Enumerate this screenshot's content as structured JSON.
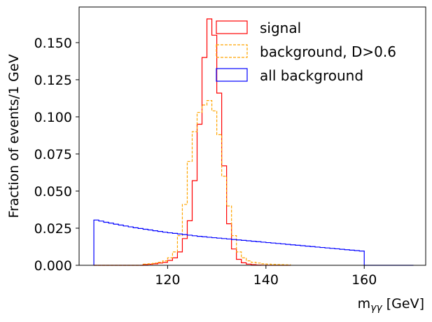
{
  "chart_data": {
    "type": "step",
    "x_label_base": "m",
    "x_label_sub": "γγ",
    "x_label_unit": " [GeV]",
    "ylabel": "Fraction of events/1 GeV",
    "xlim": [
      102,
      172.5
    ],
    "ylim": [
      0,
      0.174
    ],
    "x_ticks": [
      120,
      140,
      160
    ],
    "y_ticks": [
      0.0,
      0.025,
      0.05,
      0.075,
      0.1,
      0.125,
      0.15
    ],
    "x_tick_labels": [
      "120",
      "140",
      "160"
    ],
    "y_tick_labels": [
      "0.000",
      "0.025",
      "0.050",
      "0.075",
      "0.100",
      "0.125",
      "0.150"
    ],
    "bin_width": 1,
    "legend": {
      "position": "top-center"
    },
    "series": [
      {
        "name": "signal",
        "color": "#ff0000",
        "linestyle": "solid",
        "x_start": 105,
        "values": [
          0.0,
          0.0,
          0.0,
          0.0,
          0.0,
          0.0,
          0.0,
          0.0,
          0.0,
          0.0,
          0.0005,
          0.0007,
          0.001,
          0.0015,
          0.002,
          0.0033,
          0.005,
          0.009,
          0.018,
          0.03,
          0.057,
          0.095,
          0.14,
          0.166,
          0.155,
          0.116,
          0.067,
          0.028,
          0.011,
          0.004,
          0.0017,
          0.0008,
          0.0004,
          0.0002,
          0.0001,
          0.0,
          0.0,
          0.0,
          0.0,
          0.0
        ]
      },
      {
        "name": "background, D>0.6",
        "color": "#ffa500",
        "linestyle": "dashed",
        "x_start": 105,
        "values": [
          0.0,
          0.0,
          0.0,
          0.0,
          0.0,
          0.0,
          0.0,
          0.0,
          0.0,
          0.0,
          0.0008,
          0.001,
          0.0015,
          0.002,
          0.003,
          0.005,
          0.009,
          0.02,
          0.041,
          0.07,
          0.09,
          0.103,
          0.108,
          0.111,
          0.104,
          0.088,
          0.06,
          0.04,
          0.02,
          0.009,
          0.005,
          0.003,
          0.002,
          0.0015,
          0.001,
          0.0008,
          0.0006,
          0.0005,
          0.0004,
          0.0003
        ]
      },
      {
        "name": "all background",
        "color": "#0000ff",
        "linestyle": "solid",
        "x_start": 105,
        "values": [
          0.0305,
          0.0298,
          0.029,
          0.0284,
          0.0277,
          0.0271,
          0.0265,
          0.0259,
          0.0253,
          0.0248,
          0.0243,
          0.0238,
          0.0233,
          0.0228,
          0.0223,
          0.0219,
          0.0215,
          0.0211,
          0.0207,
          0.0203,
          0.0199,
          0.0195,
          0.0192,
          0.0189,
          0.0186,
          0.0183,
          0.018,
          0.0177,
          0.0174,
          0.0171,
          0.0168,
          0.0165,
          0.0162,
          0.0159,
          0.0156,
          0.0153,
          0.015,
          0.0147,
          0.0144,
          0.0141,
          0.0138,
          0.0135,
          0.0132,
          0.0129,
          0.0126,
          0.0123,
          0.012,
          0.0117,
          0.0114,
          0.0111,
          0.0108,
          0.0105,
          0.0102,
          0.0099,
          0.0096,
          0.0,
          0.0,
          0.0,
          0.0,
          0.0,
          0.0,
          0.0,
          0.0,
          0.0,
          0.0
        ]
      }
    ]
  }
}
